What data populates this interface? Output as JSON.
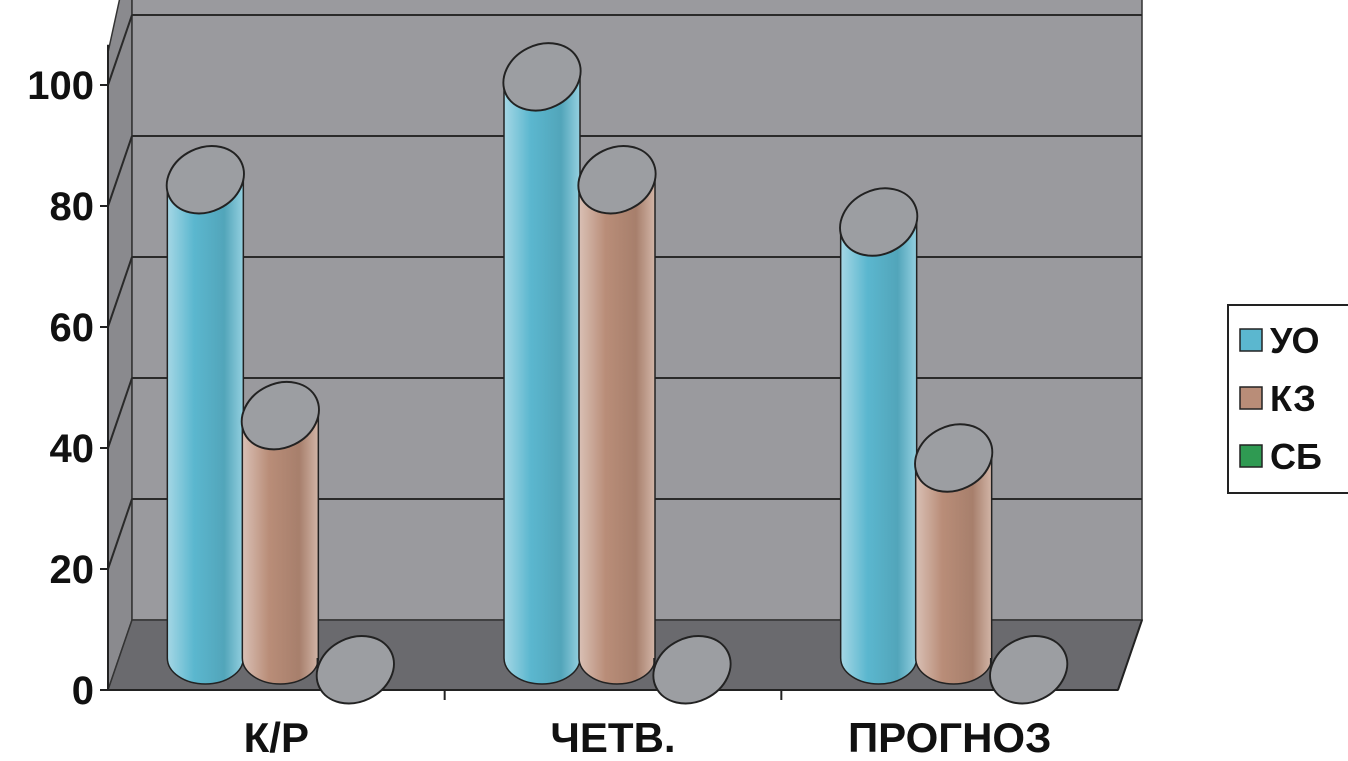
{
  "chart_data": {
    "type": "bar",
    "variant": "3d-cylinder",
    "categories": [
      "К/Р",
      "ЧЕТВ.",
      "ПРОГНОЗ"
    ],
    "series": [
      {
        "name": "УО",
        "values": [
          86,
          103,
          79
        ],
        "color": "#5bb7cf"
      },
      {
        "name": "КЗ",
        "values": [
          47,
          86,
          40
        ],
        "color": "#b98d78"
      },
      {
        "name": "СБ",
        "values": [
          5,
          5,
          5
        ],
        "color": "#2f9a52"
      }
    ],
    "yticks": [
      0,
      20,
      40,
      60,
      80,
      100
    ],
    "ylim": [
      0,
      105
    ],
    "title": "",
    "xlabel": "",
    "ylabel": "",
    "grid": true,
    "legend": "right",
    "colors": {
      "wall": "#9a9a9e",
      "wall_side": "#8a8a8e",
      "floor": "#6a6a6e",
      "grid": "#2a2a2a",
      "cap": "#9c9ea2"
    }
  }
}
